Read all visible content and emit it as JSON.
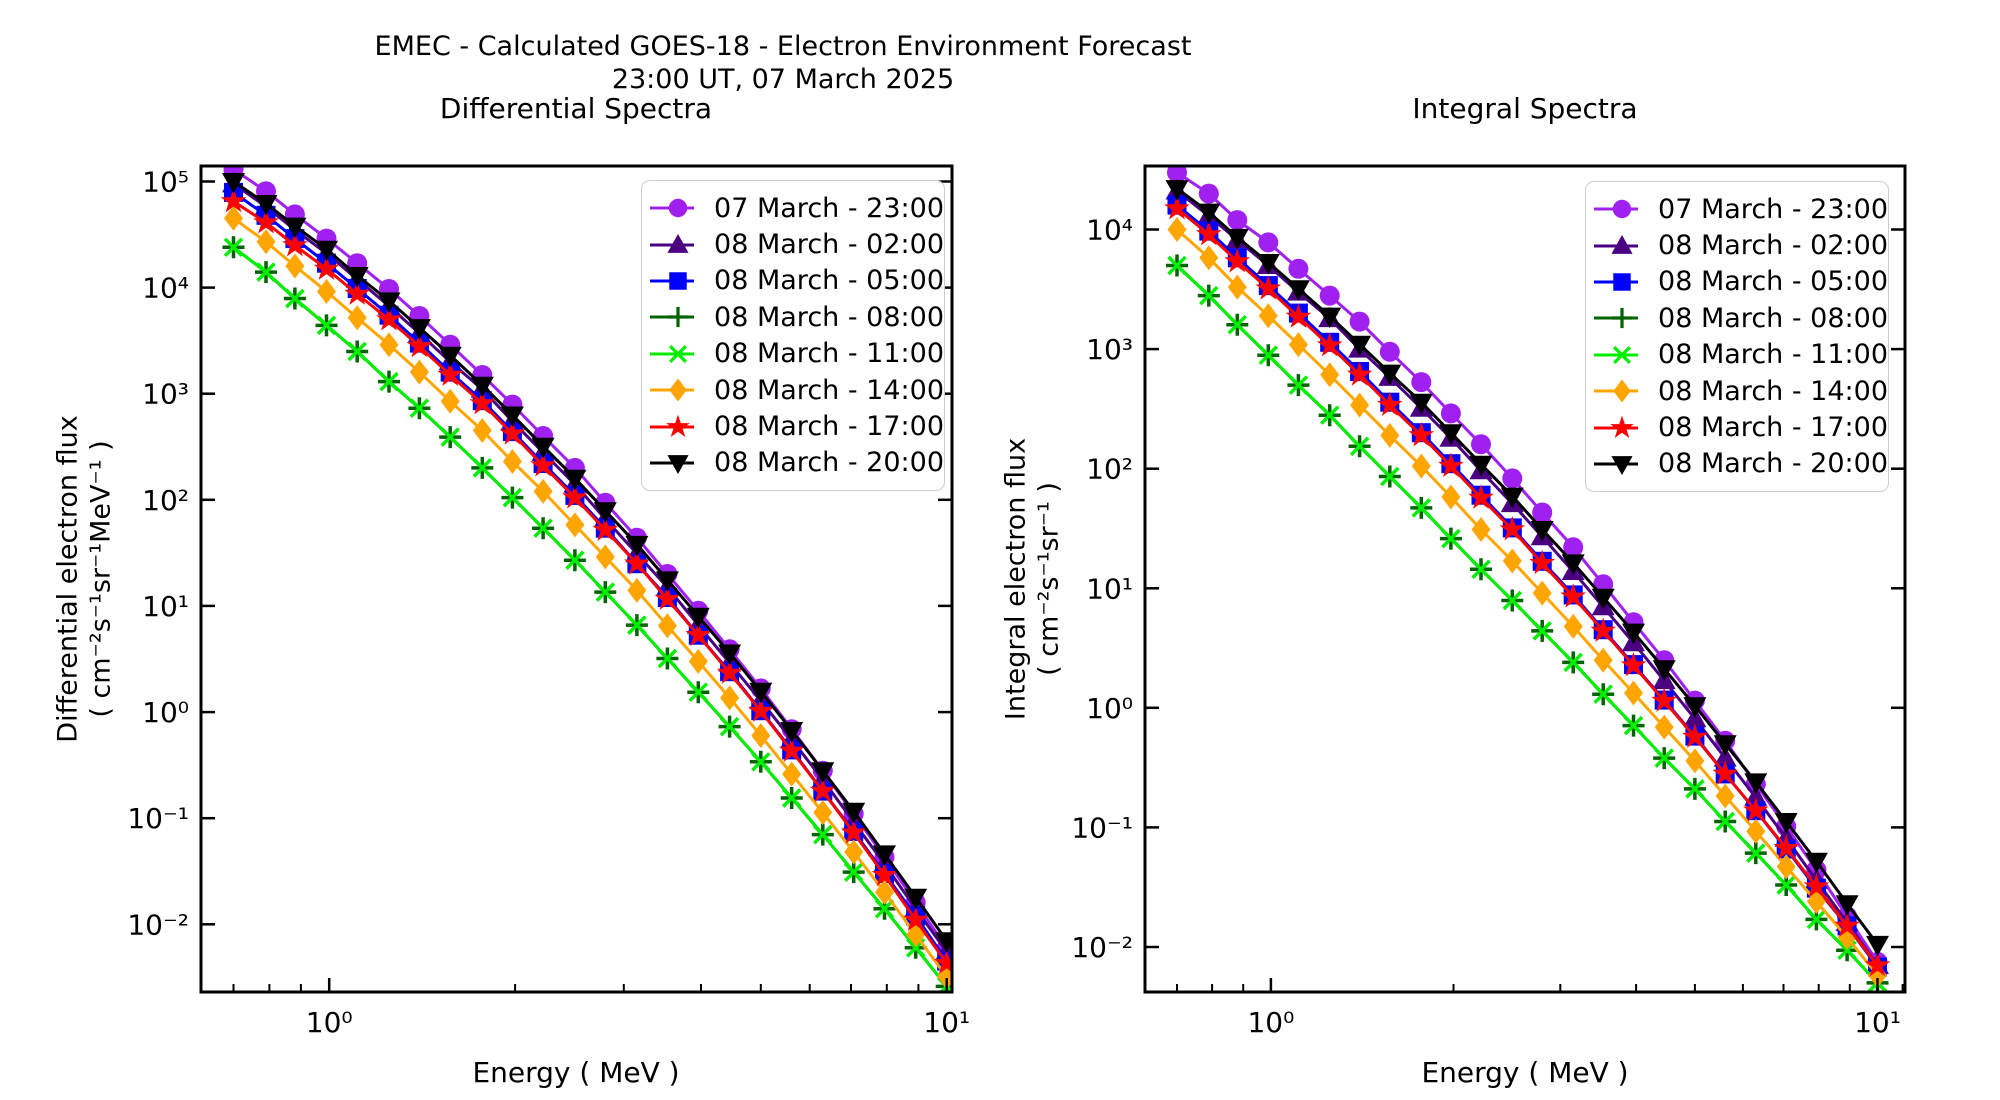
{
  "header": {
    "title_line1": "EMEC - Calculated GOES-18 - Electron Environment Forecast",
    "title_line2": "23:00 UT, 07 March 2025"
  },
  "chart_data": [
    {
      "id": "differential",
      "type": "line",
      "title": "Differential Spectra",
      "xlabel": "Energy ( MeV )",
      "ylabel": "Differential electron flux",
      "ylabel_units": "( cm⁻²s⁻¹sr⁻¹MeV⁻¹ )",
      "x_scale": "log",
      "y_scale": "log",
      "xlim": [
        0.62,
        10.2
      ],
      "ylim": [
        0.0023,
        140000
      ],
      "grid": false,
      "legend_position": "upper right",
      "x_ticks": [
        1,
        10
      ],
      "x_tick_labels": [
        "10⁰",
        "10¹"
      ],
      "x_minor_ticks": [
        0.7,
        0.8,
        0.9,
        2,
        3,
        4,
        5,
        6,
        7,
        8,
        9
      ],
      "y_ticks": [
        100000,
        10000,
        1000,
        100,
        10,
        1,
        0.1,
        0.01
      ],
      "y_tick_labels": [
        "10⁵",
        "10⁴",
        "10³",
        "10²",
        "10¹",
        "10⁰",
        "10⁻¹",
        "10⁻²"
      ],
      "x": [
        0.7,
        0.79,
        0.88,
        0.99,
        1.11,
        1.25,
        1.4,
        1.57,
        1.77,
        1.98,
        2.22,
        2.5,
        2.8,
        3.15,
        3.53,
        3.96,
        4.45,
        5.0,
        5.61,
        6.3,
        7.07,
        7.93,
        8.91,
        10.0
      ],
      "series": [
        {
          "label": "07 March - 23:00",
          "color": "#a020f0",
          "marker": "circle",
          "values": [
            130000,
            81000,
            49000,
            29000,
            17000,
            9700,
            5400,
            2900,
            1500,
            790,
            400,
            200,
            94,
            44,
            20,
            9.0,
            3.9,
            1.67,
            0.69,
            0.28,
            0.11,
            0.043,
            0.016,
            0.006
          ]
        },
        {
          "label": "08 March - 02:00",
          "color": "#4b0082",
          "marker": "triangle-up",
          "values": [
            95000,
            58000,
            35000,
            21000,
            12000,
            6700,
            3700,
            2000,
            1100,
            550,
            280,
            140,
            66,
            31,
            15,
            6.6,
            2.9,
            1.28,
            0.55,
            0.23,
            0.092,
            0.037,
            0.014,
            0.0055
          ]
        },
        {
          "label": "08 March - 05:00",
          "color": "#0000ff",
          "marker": "square",
          "values": [
            79000,
            48000,
            29000,
            17000,
            9800,
            5500,
            3000,
            1600,
            860,
            440,
            220,
            110,
            54,
            25,
            12,
            5.3,
            2.4,
            1.03,
            0.44,
            0.18,
            0.075,
            0.03,
            0.012,
            0.0045
          ]
        },
        {
          "label": "08 March - 08:00",
          "color": "#006400",
          "marker": "plus",
          "values": [
            24000,
            14000,
            7900,
            4400,
            2500,
            1300,
            730,
            390,
            200,
            105,
            54,
            27,
            13.5,
            6.6,
            3.2,
            1.54,
            0.73,
            0.34,
            0.155,
            0.07,
            0.031,
            0.014,
            0.006,
            0.0026
          ]
        },
        {
          "label": "08 March - 11:00",
          "color": "#00ee00",
          "marker": "x",
          "values": [
            24000,
            14000,
            7900,
            4400,
            2500,
            1300,
            730,
            390,
            200,
            105,
            54,
            27,
            13.5,
            6.6,
            3.2,
            1.54,
            0.73,
            0.34,
            0.155,
            0.07,
            0.031,
            0.014,
            0.006,
            0.0026
          ]
        },
        {
          "label": "08 March - 14:00",
          "color": "#ffa500",
          "marker": "diamond",
          "values": [
            45000,
            27000,
            16000,
            9200,
            5200,
            2900,
            1600,
            850,
            450,
            230,
            120,
            58,
            29,
            14,
            6.5,
            3.0,
            1.36,
            0.6,
            0.26,
            0.113,
            0.048,
            0.02,
            0.008,
            0.0032
          ]
        },
        {
          "label": "08 March - 17:00",
          "color": "#ff0000",
          "marker": "star",
          "values": [
            65000,
            41000,
            25000,
            15000,
            8700,
            5000,
            2800,
            1500,
            810,
            420,
            210,
            105,
            52,
            25,
            11.6,
            5.3,
            2.34,
            1.02,
            0.43,
            0.18,
            0.073,
            0.029,
            0.011,
            0.0043
          ]
        },
        {
          "label": "08 March - 20:00",
          "color": "#000000",
          "marker": "triangle-down",
          "values": [
            100000,
            62000,
            38000,
            23000,
            13000,
            7500,
            4200,
            2300,
            1200,
            630,
            320,
            160,
            79,
            38,
            17.6,
            8.0,
            3.6,
            1.57,
            0.67,
            0.28,
            0.116,
            0.046,
            0.018,
            0.007
          ]
        }
      ]
    },
    {
      "id": "integral",
      "type": "line",
      "title": "Integral Spectra",
      "xlabel": "Energy ( MeV )",
      "ylabel": "Integral electron flux",
      "ylabel_units": "( cm⁻²s⁻¹sr⁻¹ )",
      "x_scale": "log",
      "y_scale": "log",
      "xlim": [
        0.62,
        11.1
      ],
      "ylim": [
        0.0042,
        34000
      ],
      "grid": false,
      "legend_position": "upper right",
      "x_ticks": [
        1,
        10
      ],
      "x_tick_labels": [
        "10⁰",
        "10¹"
      ],
      "x_minor_ticks": [
        0.7,
        0.8,
        0.9,
        2,
        3,
        4,
        5,
        6,
        7,
        8,
        9,
        11
      ],
      "y_ticks": [
        10000,
        1000,
        100,
        10,
        1,
        0.1,
        0.01
      ],
      "y_tick_labels": [
        "10⁴",
        "10³",
        "10²",
        "10¹",
        "10⁰",
        "10⁻¹",
        "10⁻²"
      ],
      "x": [
        0.7,
        0.79,
        0.88,
        0.99,
        1.11,
        1.25,
        1.4,
        1.57,
        1.77,
        1.98,
        2.22,
        2.5,
        2.8,
        3.15,
        3.53,
        3.96,
        4.45,
        5.0,
        5.61,
        6.3,
        7.07,
        7.93,
        8.91,
        10.0
      ],
      "series": [
        {
          "label": "07 March - 23:00",
          "color": "#a020f0",
          "marker": "circle",
          "values": [
            30000,
            20000,
            12000,
            7800,
            4700,
            2800,
            1700,
            950,
            530,
            290,
            160,
            83,
            43,
            22,
            10.8,
            5.2,
            2.5,
            1.15,
            0.53,
            0.23,
            0.102,
            0.044,
            0.018,
            0.0075
          ]
        },
        {
          "label": "08 March - 02:00",
          "color": "#4b0082",
          "marker": "triangle-up",
          "values": [
            21000,
            13000,
            8200,
            5000,
            3000,
            1800,
            1000,
            580,
            320,
            180,
            96,
            51,
            27,
            13.8,
            7.0,
            3.5,
            1.69,
            0.81,
            0.38,
            0.178,
            0.081,
            0.036,
            0.016,
            0.007
          ]
        },
        {
          "label": "08 March - 05:00",
          "color": "#0000ff",
          "marker": "square",
          "values": [
            16000,
            9700,
            5800,
            3400,
            2000,
            1140,
            650,
            360,
            200,
            110,
            60,
            32,
            16.8,
            8.8,
            4.5,
            2.3,
            1.16,
            0.58,
            0.28,
            0.138,
            0.066,
            0.031,
            0.015,
            0.0068
          ]
        },
        {
          "label": "08 March - 08:00",
          "color": "#006400",
          "marker": "plus",
          "values": [
            5000,
            2800,
            1600,
            890,
            500,
            280,
            154,
            86,
            47,
            26,
            14.4,
            7.9,
            4.4,
            2.4,
            1.3,
            0.71,
            0.38,
            0.21,
            0.112,
            0.061,
            0.033,
            0.017,
            0.0094,
            0.005
          ]
        },
        {
          "label": "08 March - 11:00",
          "color": "#00ee00",
          "marker": "x",
          "values": [
            5000,
            2800,
            1600,
            890,
            500,
            280,
            154,
            86,
            47,
            26,
            14.4,
            7.9,
            4.4,
            2.4,
            1.3,
            0.71,
            0.38,
            0.21,
            0.112,
            0.061,
            0.033,
            0.017,
            0.0094,
            0.005
          ]
        },
        {
          "label": "08 March - 14:00",
          "color": "#ffa500",
          "marker": "diamond",
          "values": [
            10000,
            5800,
            3300,
            1900,
            1090,
            610,
            340,
            190,
            105,
            58,
            31,
            16.9,
            9.1,
            4.8,
            2.5,
            1.33,
            0.69,
            0.36,
            0.183,
            0.093,
            0.047,
            0.024,
            0.012,
            0.0058
          ]
        },
        {
          "label": "08 March - 17:00",
          "color": "#ff0000",
          "marker": "star",
          "values": [
            15000,
            9100,
            5400,
            3200,
            1860,
            1070,
            610,
            340,
            190,
            105,
            57,
            31,
            16.2,
            8.5,
            4.4,
            2.26,
            1.14,
            0.57,
            0.28,
            0.138,
            0.067,
            0.032,
            0.015,
            0.007
          ]
        },
        {
          "label": "08 March - 20:00",
          "color": "#000000",
          "marker": "triangle-down",
          "values": [
            22000,
            14000,
            8600,
            5300,
            3200,
            1890,
            1100,
            630,
            360,
            200,
            109,
            59,
            31,
            16.3,
            8.4,
            4.3,
            2.12,
            1.04,
            0.5,
            0.24,
            0.112,
            0.052,
            0.023,
            0.0105
          ]
        }
      ]
    }
  ]
}
